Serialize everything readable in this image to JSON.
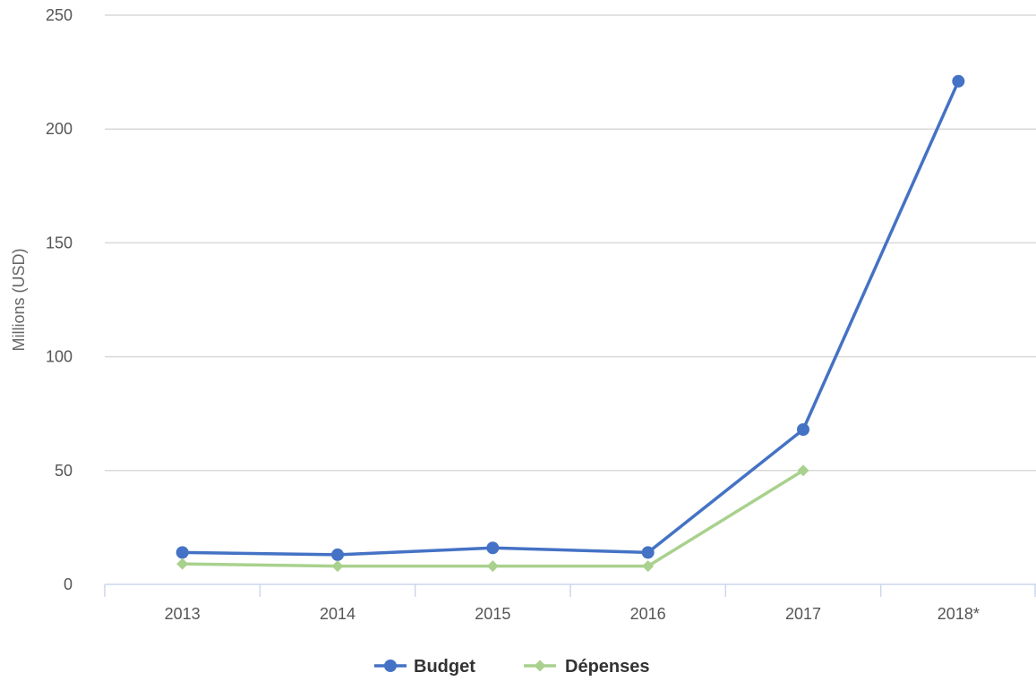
{
  "chart_data": {
    "type": "line",
    "categories": [
      "2013",
      "2014",
      "2015",
      "2016",
      "2017",
      "2018*"
    ],
    "series": [
      {
        "name": "Budget",
        "values": [
          14,
          13,
          16,
          14,
          68,
          221
        ],
        "color": "#4472c4",
        "marker": "circle"
      },
      {
        "name": "Dépenses",
        "values": [
          9,
          8,
          8,
          8,
          50,
          null
        ],
        "color": "#a9d18e",
        "marker": "diamond"
      }
    ],
    "title": "",
    "xlabel": "",
    "ylabel": "Millions (USD)",
    "ylim": [
      0,
      250
    ],
    "yticks": [
      "0",
      "50",
      "100",
      "150",
      "200",
      "250"
    ],
    "grid": "horizontal",
    "legend_position": "bottom"
  }
}
